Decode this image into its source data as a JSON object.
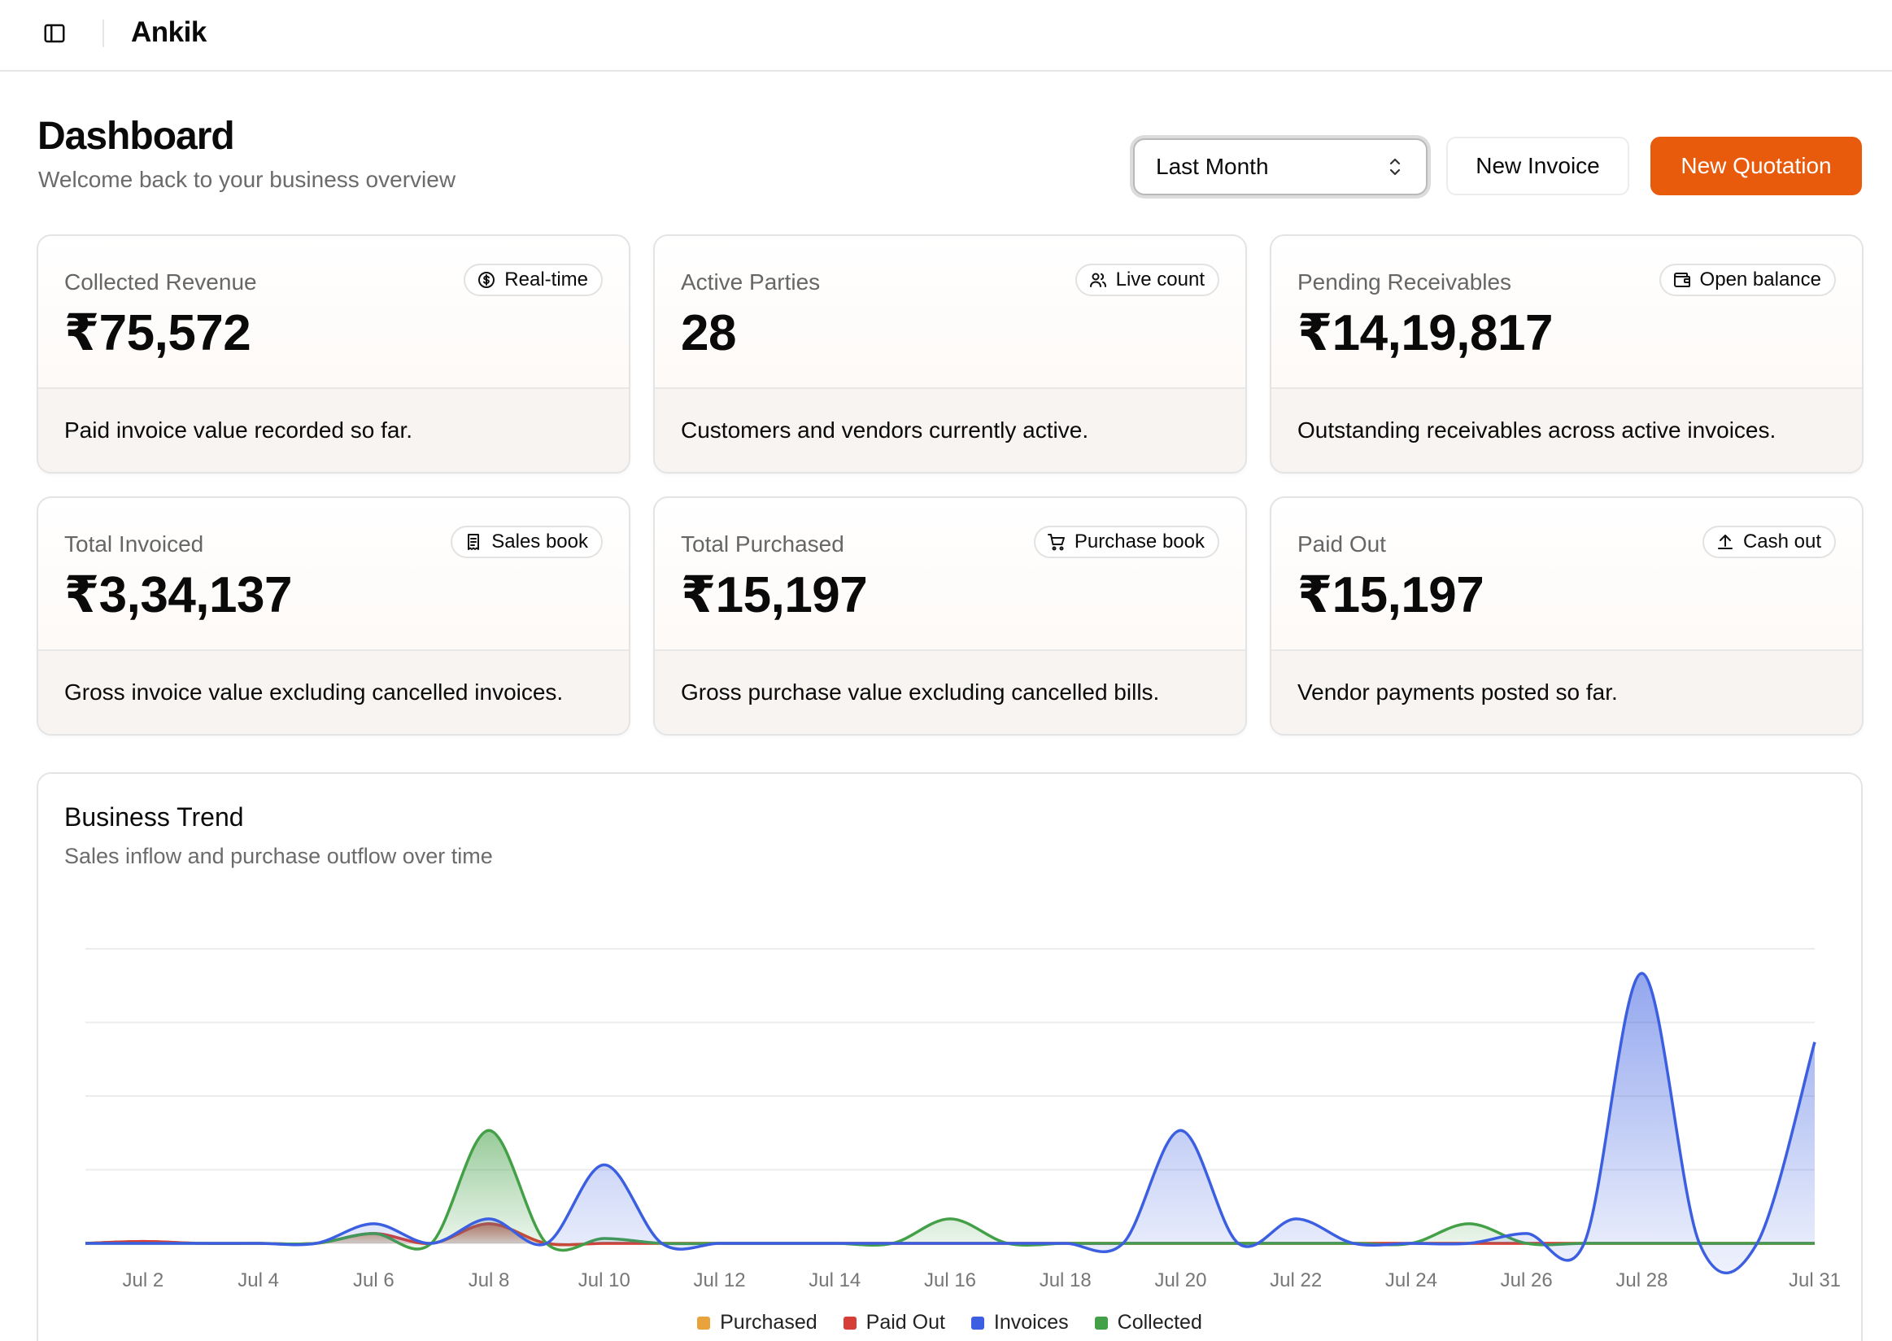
{
  "app": {
    "title": "Ankik"
  },
  "header": {
    "title": "Dashboard",
    "subtitle": "Welcome back to your business overview",
    "period": "Last Month",
    "new_invoice": "New Invoice",
    "new_quotation": "New Quotation"
  },
  "cards": [
    {
      "label": "Collected Revenue",
      "value": "₹75,572",
      "badge": "Real-time",
      "badge_icon": "dollar-circle-icon",
      "footer": "Paid invoice value recorded so far."
    },
    {
      "label": "Active Parties",
      "value": "28",
      "badge": "Live count",
      "badge_icon": "users-icon",
      "footer": "Customers and vendors currently active."
    },
    {
      "label": "Pending Receivables",
      "value": "₹14,19,817",
      "badge": "Open balance",
      "badge_icon": "wallet-icon",
      "footer": "Outstanding receivables across active invoices."
    },
    {
      "label": "Total Invoiced",
      "value": "₹3,34,137",
      "badge": "Sales book",
      "badge_icon": "receipt-icon",
      "footer": "Gross invoice value excluding cancelled invoices."
    },
    {
      "label": "Total Purchased",
      "value": "₹15,197",
      "badge": "Purchase book",
      "badge_icon": "cart-icon",
      "footer": "Gross purchase value excluding cancelled bills."
    },
    {
      "label": "Paid Out",
      "value": "₹15,197",
      "badge": "Cash out",
      "badge_icon": "upload-icon",
      "footer": "Vendor payments posted so far."
    }
  ],
  "chart": {
    "title": "Business Trend",
    "subtitle": "Sales inflow and purchase outflow over time"
  },
  "chart_data": {
    "type": "area",
    "x": [
      "Jul 1",
      "Jul 2",
      "Jul 3",
      "Jul 4",
      "Jul 5",
      "Jul 6",
      "Jul 7",
      "Jul 8",
      "Jul 9",
      "Jul 10",
      "Jul 11",
      "Jul 12",
      "Jul 13",
      "Jul 14",
      "Jul 15",
      "Jul 16",
      "Jul 17",
      "Jul 18",
      "Jul 19",
      "Jul 20",
      "Jul 21",
      "Jul 22",
      "Jul 23",
      "Jul 24",
      "Jul 25",
      "Jul 26",
      "Jul 27",
      "Jul 28",
      "Jul 29",
      "Jul 30",
      "Jul 31"
    ],
    "tick_labels": [
      "Jul 2",
      "Jul 4",
      "Jul 6",
      "Jul 8",
      "Jul 10",
      "Jul 12",
      "Jul 14",
      "Jul 16",
      "Jul 18",
      "Jul 20",
      "Jul 22",
      "Jul 24",
      "Jul 26",
      "Jul 28",
      "Jul 31"
    ],
    "series": [
      {
        "name": "Purchased",
        "color": "#e8a33c",
        "values": [
          0,
          0.4,
          0,
          0,
          0,
          2,
          0,
          4,
          0,
          0,
          0,
          0,
          0,
          0,
          0,
          0,
          0,
          0,
          0,
          0,
          0,
          0,
          0,
          0,
          0,
          0,
          0,
          0,
          0,
          0,
          0
        ]
      },
      {
        "name": "Paid Out",
        "color": "#d63f37",
        "values": [
          0,
          0.4,
          0,
          0,
          0,
          2,
          0,
          4,
          0,
          0,
          0,
          0,
          0,
          0,
          0,
          0,
          0,
          0,
          0,
          0,
          0,
          0,
          0,
          0,
          0,
          0,
          0,
          0,
          0,
          0,
          0
        ]
      },
      {
        "name": "Invoices",
        "color": "#3b5fe0",
        "values": [
          0,
          0,
          0,
          0,
          0,
          4,
          0,
          5,
          0,
          16,
          0,
          0,
          0,
          0,
          0,
          0,
          0,
          0,
          0,
          23,
          0,
          5,
          0,
          0,
          0,
          2,
          0,
          55,
          0,
          0,
          41
        ]
      },
      {
        "name": "Collected",
        "color": "#43a047",
        "values": [
          0,
          0,
          0,
          0,
          0,
          2,
          0,
          23,
          0,
          1,
          0,
          0,
          0,
          0,
          0,
          5,
          0,
          0,
          0,
          0,
          0,
          0,
          0,
          0,
          4,
          0,
          0,
          0,
          0,
          0,
          0
        ]
      }
    ],
    "grid": true,
    "legend": "bottom-center",
    "ylim": [
      0,
      60
    ]
  }
}
